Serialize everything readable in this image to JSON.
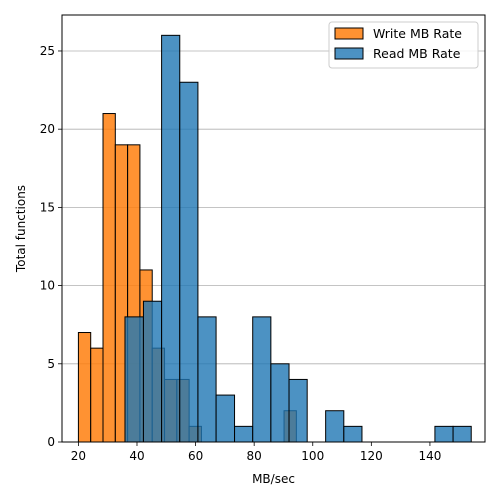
{
  "chart_data": {
    "type": "bar",
    "xlabel": "MB/sec",
    "ylabel": "Total functions",
    "xlim": [
      14.4,
      158.8
    ],
    "ylim": [
      0,
      27.3
    ],
    "xticks": [
      20,
      40,
      60,
      80,
      100,
      120,
      140
    ],
    "yticks": [
      0,
      5,
      10,
      15,
      20,
      25
    ],
    "grid": "y",
    "legend_position": "top-right",
    "series": [
      {
        "name": "Write MB Rate",
        "color": "#ff7f0e",
        "bins": [
          {
            "x0": 20.0,
            "x1": 24.2,
            "value": 7
          },
          {
            "x0": 24.2,
            "x1": 28.4,
            "value": 6
          },
          {
            "x0": 28.4,
            "x1": 32.6,
            "value": 21
          },
          {
            "x0": 32.6,
            "x1": 36.8,
            "value": 19
          },
          {
            "x0": 36.8,
            "x1": 41.0,
            "value": 19
          },
          {
            "x0": 41.0,
            "x1": 45.2,
            "value": 11
          },
          {
            "x0": 45.2,
            "x1": 49.4,
            "value": 6
          },
          {
            "x0": 49.4,
            "x1": 53.6,
            "value": 4
          },
          {
            "x0": 53.6,
            "x1": 57.8,
            "value": 4
          },
          {
            "x0": 57.8,
            "x1": 62.0,
            "value": 1
          },
          {
            "x0": 90.2,
            "x1": 94.4,
            "value": 2
          }
        ]
      },
      {
        "name": "Read MB Rate",
        "color": "#1f77b4",
        "bins": [
          {
            "x0": 35.9,
            "x1": 42.2,
            "value": 8
          },
          {
            "x0": 42.2,
            "x1": 48.4,
            "value": 9
          },
          {
            "x0": 48.4,
            "x1": 54.6,
            "value": 26
          },
          {
            "x0": 54.6,
            "x1": 60.8,
            "value": 23
          },
          {
            "x0": 60.8,
            "x1": 67.0,
            "value": 8
          },
          {
            "x0": 67.0,
            "x1": 73.3,
            "value": 3
          },
          {
            "x0": 73.3,
            "x1": 79.5,
            "value": 1
          },
          {
            "x0": 79.5,
            "x1": 85.7,
            "value": 8
          },
          {
            "x0": 85.7,
            "x1": 91.9,
            "value": 5
          },
          {
            "x0": 91.9,
            "x1": 98.1,
            "value": 4
          },
          {
            "x0": 104.4,
            "x1": 110.6,
            "value": 2
          },
          {
            "x0": 110.6,
            "x1": 116.8,
            "value": 1
          },
          {
            "x0": 141.7,
            "x1": 147.9,
            "value": 1
          },
          {
            "x0": 147.9,
            "x1": 154.1,
            "value": 1
          }
        ]
      }
    ]
  }
}
